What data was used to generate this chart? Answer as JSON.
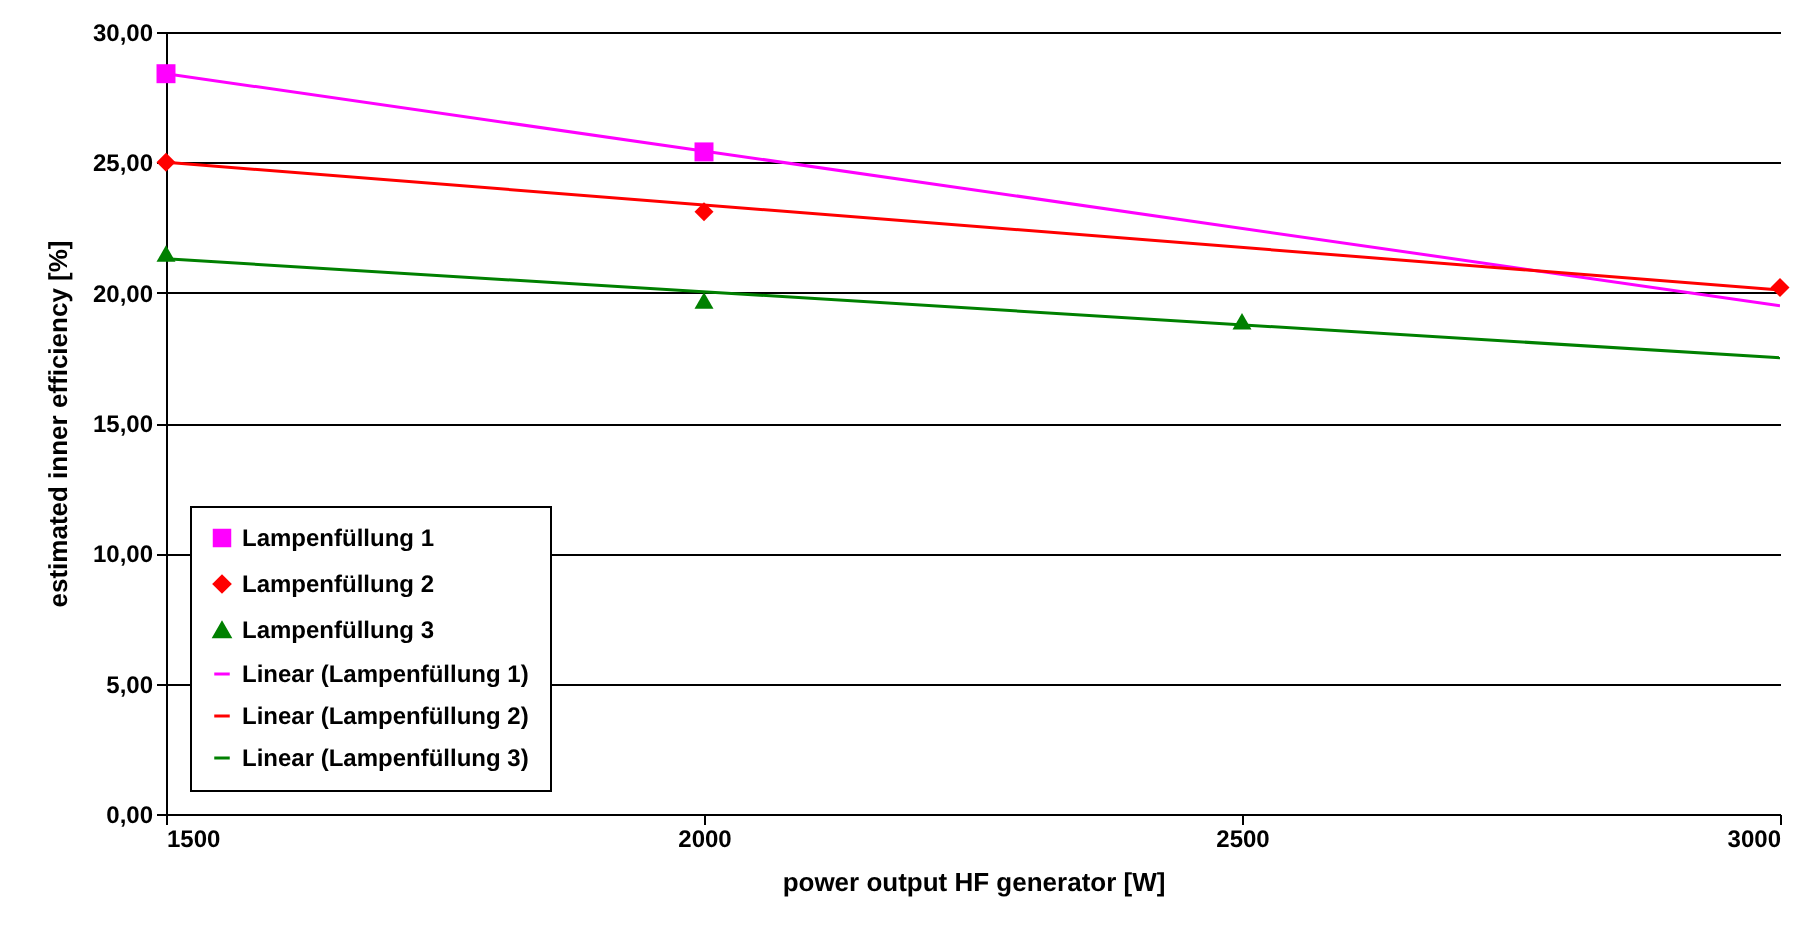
{
  "chart_data": {
    "type": "scatter",
    "xlabel": "power output HF generator [W]",
    "ylabel": "estimated inner efficiency [%]",
    "xlim": [
      1500,
      3000
    ],
    "xticks": [
      1500,
      2000,
      2500,
      3000
    ],
    "ylim": [
      0,
      30
    ],
    "yticks": [
      {
        "value": 0,
        "label": "0,00"
      },
      {
        "value": 5,
        "label": "5,00"
      },
      {
        "value": 10,
        "label": "10,00"
      },
      {
        "value": 15,
        "label": "15,00"
      },
      {
        "value": 20,
        "label": "20,00"
      },
      {
        "value": 25,
        "label": "25,00"
      },
      {
        "value": 30,
        "label": "30,00"
      }
    ],
    "grid": "y",
    "legend": "bottom left",
    "series": [
      {
        "name": "Lampenfüllung 1",
        "type": "scatter",
        "marker": "square",
        "color": "#ff00ff",
        "x": [
          1500,
          2000
        ],
        "values": [
          28.4,
          25.4
        ]
      },
      {
        "name": "Lampenfüllung 2",
        "type": "scatter",
        "marker": "diamond",
        "color": "#ff0000",
        "x": [
          1500,
          2000,
          3000
        ],
        "values": [
          25.0,
          23.1,
          20.2
        ]
      },
      {
        "name": "Lampenfüllung 3",
        "type": "scatter",
        "marker": "triangle",
        "color": "#008000",
        "x": [
          1500,
          2000,
          2500
        ],
        "values": [
          21.5,
          19.7,
          18.9
        ]
      },
      {
        "name": "Linear (Lampenfüllung 1)",
        "type": "line",
        "color": "#ff00ff",
        "x": [
          1500,
          3000
        ],
        "values": [
          28.4,
          19.5
        ]
      },
      {
        "name": "Linear (Lampenfüllung 2)",
        "type": "line",
        "color": "#ff0000",
        "x": [
          1500,
          3000
        ],
        "values": [
          25.0,
          20.1
        ]
      },
      {
        "name": "Linear (Lampenfüllung 3)",
        "type": "line",
        "color": "#008000",
        "x": [
          1500,
          3000
        ],
        "values": [
          21.3,
          17.5
        ]
      }
    ]
  }
}
